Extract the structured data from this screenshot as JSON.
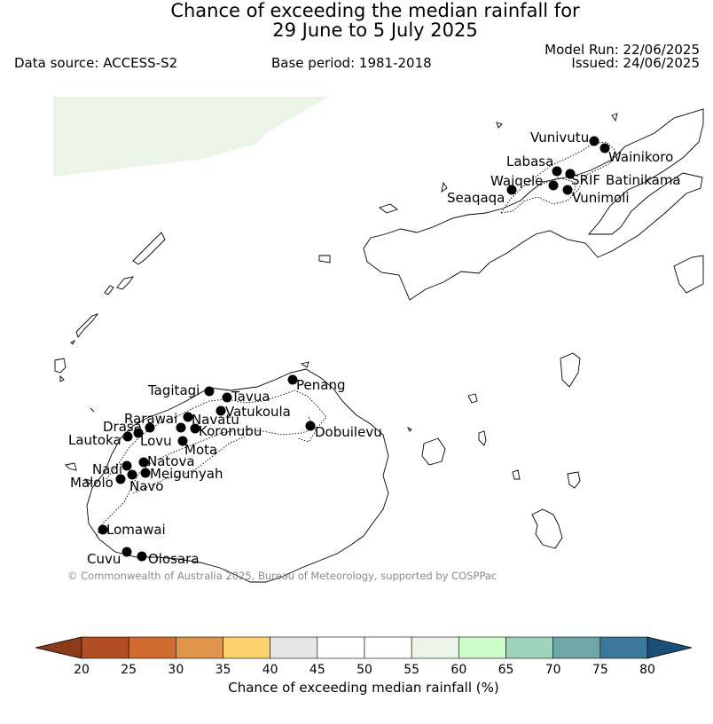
{
  "header": {
    "title_line1": "Chance of exceeding the median rainfall for",
    "title_line2": "29 June to 5 July 2025",
    "data_source": "Data source: ACCESS-S2",
    "base_period": "Base period: 1981-2018",
    "model_run": "Model Run: 22/06/2025",
    "issued": "Issued: 24/06/2025"
  },
  "map": {
    "copyright": "© Commonwealth of Australia 2025, Bureau of Meteorology, supported by COSPPac",
    "stations": [
      {
        "name": "Vunivutu"
      },
      {
        "name": "Wainikoro"
      },
      {
        "name": "Labasa"
      },
      {
        "name": "SRIF"
      },
      {
        "name": "Batinikama"
      },
      {
        "name": "Waiqele"
      },
      {
        "name": "Seaqaqa"
      },
      {
        "name": "Vunimoli"
      },
      {
        "name": "Penang"
      },
      {
        "name": "Tagitagi"
      },
      {
        "name": "Tavua"
      },
      {
        "name": "Vatukoula"
      },
      {
        "name": "Rarawai"
      },
      {
        "name": "Navatu"
      },
      {
        "name": "Drasa"
      },
      {
        "name": "Koronubu"
      },
      {
        "name": "Dobuilevu"
      },
      {
        "name": "Lautoka"
      },
      {
        "name": "Lovu"
      },
      {
        "name": "Mota"
      },
      {
        "name": "Natova"
      },
      {
        "name": "Nadi"
      },
      {
        "name": "Meigunyah"
      },
      {
        "name": "Malolo"
      },
      {
        "name": "Navo"
      },
      {
        "name": "Lomawai"
      },
      {
        "name": "Cuvu"
      },
      {
        "name": "Olosara"
      }
    ],
    "shaded_region_probability": "55-60"
  },
  "colorbar": {
    "label": "Chance of exceeding median rainfall (%)",
    "ticks": [
      "20",
      "25",
      "30",
      "35",
      "40",
      "45",
      "50",
      "55",
      "60",
      "65",
      "70",
      "75",
      "80"
    ],
    "low_extend_color": "#8c3a1c",
    "high_extend_color": "#1a4f7a",
    "colors": [
      "#b34e24",
      "#d06c30",
      "#e0954a",
      "#fdd26a",
      "#e6e6e6",
      "#ffffff",
      "#ffffff",
      "#eaf5e8",
      "#ccfcc8",
      "#9ed4ba",
      "#6fa7a8",
      "#3b7798"
    ]
  }
}
